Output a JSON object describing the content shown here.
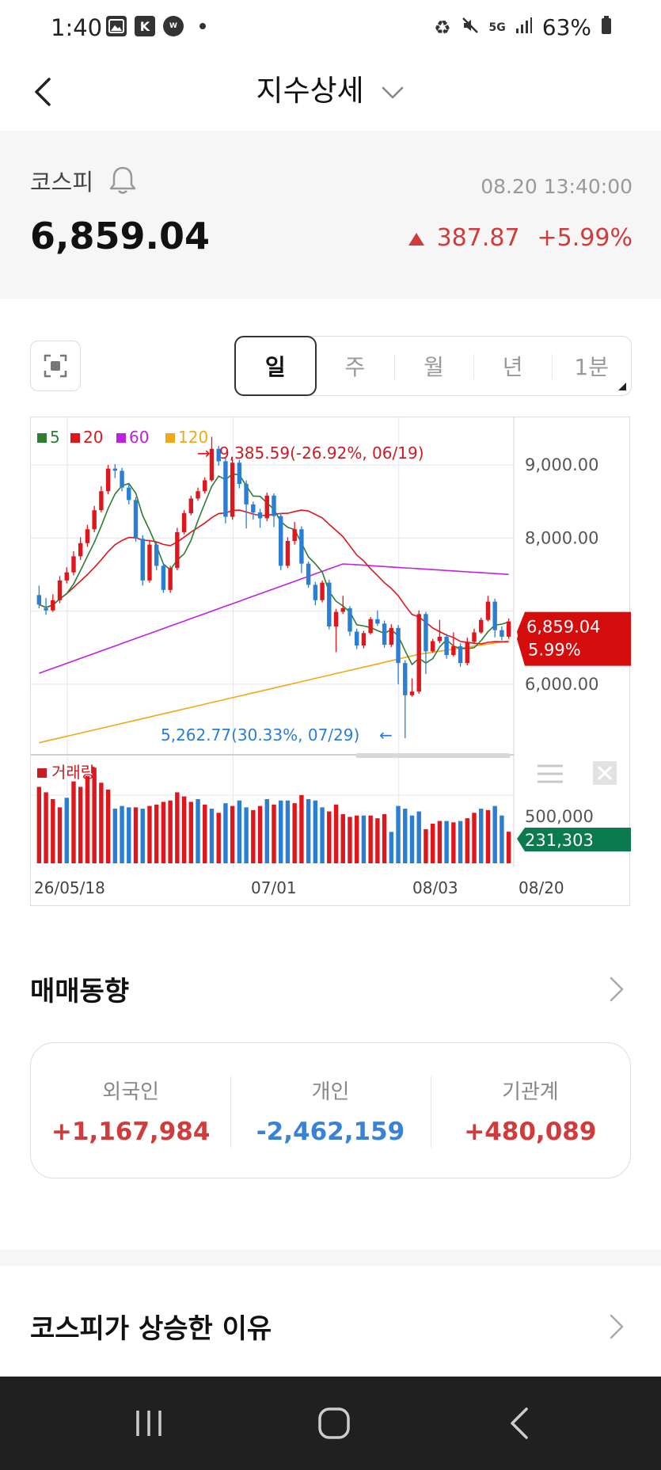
{
  "status_bar": {
    "time": "1:40",
    "left_icons": [
      "gallery-icon",
      "k-app-icon",
      "won-app-icon"
    ],
    "battery": "63%",
    "network": "5G"
  },
  "header": {
    "title": "지수상세"
  },
  "index": {
    "name": "코스피",
    "timestamp": "08.20 13:40:00",
    "value": "6,859.04",
    "change": "387.87",
    "change_pct": "+5.99%",
    "up_color": "#d03c3c"
  },
  "period_tabs": [
    {
      "label": "일",
      "active": true
    },
    {
      "label": "주",
      "active": false
    },
    {
      "label": "월",
      "active": false
    },
    {
      "label": "년",
      "active": false
    },
    {
      "label": "1분",
      "active": false
    }
  ],
  "chart_data": {
    "type": "candlestick",
    "legend": [
      {
        "label": "5",
        "color": "#2e7d32"
      },
      {
        "label": "20",
        "color": "#e0161d"
      },
      {
        "label": "60",
        "color": "#c020e0"
      },
      {
        "label": "120",
        "color": "#f0a818"
      }
    ],
    "x_ticks": [
      "26/05/18",
      "07/01",
      "08/03",
      "08/20"
    ],
    "y_ticks": [
      "9,000.00",
      "8,000.00",
      "6,000.00"
    ],
    "y_tick_values": [
      9000,
      8000,
      6000
    ],
    "y_range": [
      5100,
      9650
    ],
    "high_annotation": "9,385.59(-26.92%, 06/19)",
    "low_annotation": "5,262.77(30.33%, 07/29)",
    "current_price_label": "6,859.04",
    "current_change_label": "5.99%",
    "candles": [
      [
        7220,
        7090,
        7350,
        7040
      ],
      [
        7040,
        7010,
        7180,
        6950
      ],
      [
        7010,
        7150,
        7230,
        6990
      ],
      [
        7150,
        7420,
        7480,
        7110
      ],
      [
        7420,
        7530,
        7600,
        7380
      ],
      [
        7530,
        7750,
        7820,
        7490
      ],
      [
        7750,
        7930,
        8010,
        7700
      ],
      [
        7930,
        8120,
        8180,
        7880
      ],
      [
        8120,
        8380,
        8440,
        8080
      ],
      [
        8380,
        8640,
        8710,
        8350
      ],
      [
        8640,
        8950,
        9000,
        8600
      ],
      [
        8950,
        8920,
        9010,
        8820
      ],
      [
        8920,
        8690,
        8960,
        8640
      ],
      [
        8690,
        8520,
        8740,
        8460
      ],
      [
        8520,
        7990,
        8560,
        7950
      ],
      [
        7990,
        7420,
        8040,
        7350
      ],
      [
        7420,
        7910,
        7960,
        7390
      ],
      [
        7910,
        7620,
        7940,
        7560
      ],
      [
        7620,
        7290,
        7660,
        7250
      ],
      [
        7290,
        7590,
        7620,
        7250
      ],
      [
        7590,
        8080,
        8140,
        7560
      ],
      [
        8080,
        8340,
        8380,
        8050
      ],
      [
        8340,
        8540,
        8580,
        8310
      ],
      [
        8540,
        8640,
        8690,
        8510
      ],
      [
        8640,
        8790,
        8830,
        8610
      ],
      [
        8790,
        9220,
        9385,
        8770
      ],
      [
        9220,
        9050,
        9260,
        8990
      ],
      [
        9050,
        8290,
        9100,
        8200
      ],
      [
        8290,
        9030,
        9080,
        8250
      ],
      [
        9030,
        8740,
        9070,
        8680
      ],
      [
        8740,
        8460,
        8790,
        8130
      ],
      [
        8460,
        8350,
        8500,
        8250
      ],
      [
        8350,
        8270,
        8400,
        8140
      ],
      [
        8270,
        8580,
        8620,
        8230
      ],
      [
        8580,
        8300,
        8610,
        8150
      ],
      [
        8300,
        7620,
        8340,
        7560
      ],
      [
        7620,
        7960,
        8010,
        7590
      ],
      [
        7960,
        8120,
        8220,
        7910
      ],
      [
        8120,
        7650,
        8160,
        7520
      ],
      [
        7650,
        7360,
        7680,
        7320
      ],
      [
        7360,
        7150,
        7400,
        7080
      ],
      [
        7150,
        7390,
        7420,
        7120
      ],
      [
        7390,
        6790,
        7430,
        6750
      ],
      [
        6790,
        6990,
        7030,
        6440
      ],
      [
        6990,
        7040,
        7210,
        6960
      ],
      [
        7040,
        6720,
        7070,
        6660
      ],
      [
        6720,
        6530,
        6760,
        6480
      ],
      [
        6530,
        6700,
        6730,
        6490
      ],
      [
        6700,
        6890,
        6920,
        6680
      ],
      [
        6890,
        6830,
        7010,
        6800
      ],
      [
        6830,
        6540,
        6870,
        6500
      ],
      [
        6540,
        6770,
        6820,
        6510
      ],
      [
        6770,
        6290,
        6810,
        6000
      ],
      [
        6290,
        5850,
        6330,
        5262
      ],
      [
        5850,
        5900,
        6080,
        5830
      ],
      [
        5900,
        6960,
        7010,
        5870
      ],
      [
        6960,
        6450,
        6990,
        6140
      ],
      [
        6450,
        6590,
        6620,
        6430
      ],
      [
        6590,
        6650,
        6880,
        6560
      ],
      [
        6650,
        6400,
        6690,
        6350
      ],
      [
        6400,
        6520,
        6710,
        6380
      ],
      [
        6520,
        6290,
        6560,
        6240
      ],
      [
        6290,
        6580,
        6640,
        6260
      ],
      [
        6580,
        6710,
        6760,
        6550
      ],
      [
        6710,
        6880,
        6910,
        6690
      ],
      [
        6880,
        7130,
        7210,
        6860
      ],
      [
        7130,
        6740,
        7170,
        6640
      ],
      [
        6740,
        6650,
        6790,
        6600
      ],
      [
        6650,
        6859,
        6900,
        6620
      ]
    ],
    "volume_label": "거래량",
    "volume_tick": "500,000",
    "current_volume_label": "231,303",
    "volumes": [
      [
        560000,
        0
      ],
      [
        520000,
        0
      ],
      [
        470000,
        0
      ],
      [
        410000,
        0
      ],
      [
        480000,
        1
      ],
      [
        600000,
        0
      ],
      [
        560000,
        0
      ],
      [
        640000,
        0
      ],
      [
        700000,
        0
      ],
      [
        590000,
        0
      ],
      [
        540000,
        0
      ],
      [
        400000,
        1
      ],
      [
        420000,
        1
      ],
      [
        410000,
        1
      ],
      [
        410000,
        0
      ],
      [
        400000,
        1
      ],
      [
        420000,
        0
      ],
      [
        430000,
        0
      ],
      [
        450000,
        0
      ],
      [
        460000,
        0
      ],
      [
        520000,
        0
      ],
      [
        490000,
        0
      ],
      [
        450000,
        0
      ],
      [
        470000,
        1
      ],
      [
        430000,
        0
      ],
      [
        400000,
        1
      ],
      [
        370000,
        0
      ],
      [
        440000,
        1
      ],
      [
        420000,
        0
      ],
      [
        460000,
        1
      ],
      [
        410000,
        1
      ],
      [
        390000,
        0
      ],
      [
        420000,
        0
      ],
      [
        470000,
        1
      ],
      [
        430000,
        0
      ],
      [
        460000,
        1
      ],
      [
        460000,
        1
      ],
      [
        440000,
        0
      ],
      [
        500000,
        0
      ],
      [
        470000,
        1
      ],
      [
        460000,
        1
      ],
      [
        410000,
        1
      ],
      [
        380000,
        0
      ],
      [
        430000,
        0
      ],
      [
        360000,
        0
      ],
      [
        340000,
        0
      ],
      [
        350000,
        0
      ],
      [
        350000,
        1
      ],
      [
        350000,
        0
      ],
      [
        330000,
        0
      ],
      [
        360000,
        0
      ],
      [
        230000,
        1
      ],
      [
        420000,
        1
      ],
      [
        400000,
        1
      ],
      [
        350000,
        1
      ],
      [
        380000,
        1
      ],
      [
        250000,
        0
      ],
      [
        290000,
        0
      ],
      [
        310000,
        0
      ],
      [
        310000,
        1
      ],
      [
        300000,
        0
      ],
      [
        310000,
        1
      ],
      [
        330000,
        0
      ],
      [
        370000,
        0
      ],
      [
        400000,
        1
      ],
      [
        390000,
        0
      ],
      [
        420000,
        1
      ],
      [
        350000,
        1
      ],
      [
        231303,
        0
      ]
    ],
    "up_color": "#e0161d",
    "down_color": "#2a7fd4"
  },
  "trading": {
    "title": "매매동향",
    "foreign_label": "외국인",
    "foreign_value": "+1,167,984",
    "individual_label": "개인",
    "individual_value": "-2,462,159",
    "institution_label": "기관계",
    "institution_value": "+480,089"
  },
  "reason": {
    "title": "코스피가 상승한 이유"
  }
}
